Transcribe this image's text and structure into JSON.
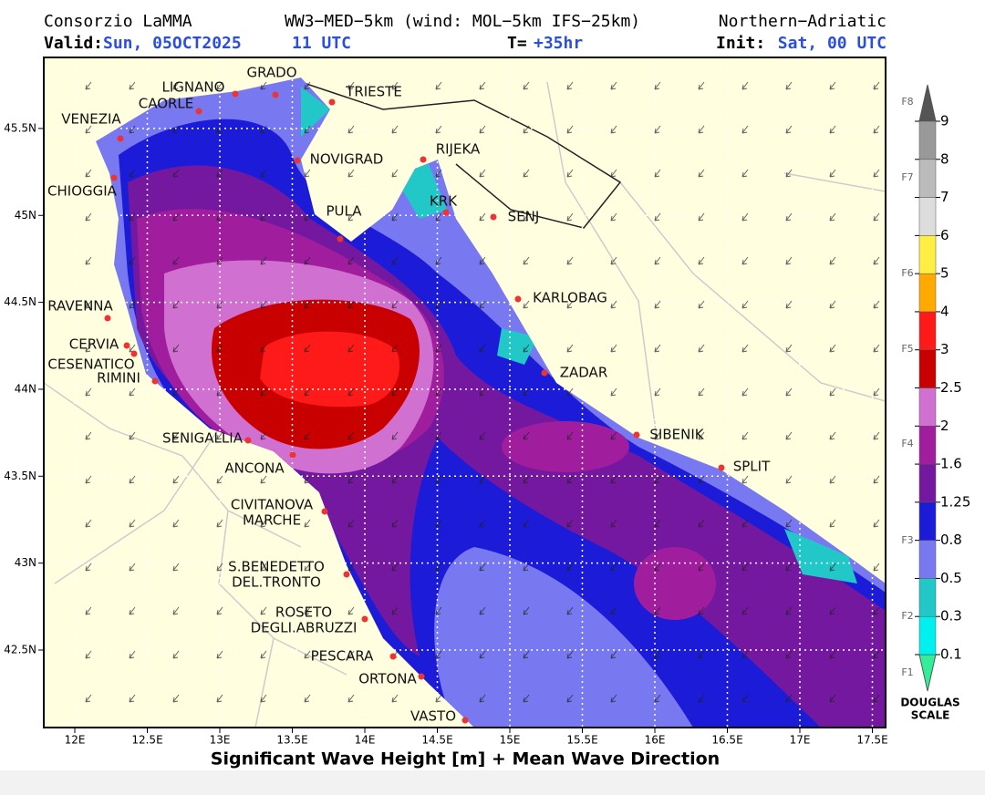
{
  "header": {
    "source": "Consorzio LaMMA",
    "model": "WW3−MED−5km (wind: MOL−5km IFS−25km)",
    "region": "Northern−Adriatic",
    "valid_label": "Valid:",
    "valid_date": "Sun, 05OCT2025",
    "valid_time": "11 UTC",
    "t_label": "T=",
    "t_value": "+35hr",
    "init_label": "Init:",
    "init_value": "Sat, 00 UTC"
  },
  "axes": {
    "x_ticks": [
      {
        "value": 12,
        "label": "12E"
      },
      {
        "value": 12.5,
        "label": "12.5E"
      },
      {
        "value": 13,
        "label": "13E"
      },
      {
        "value": 13.5,
        "label": "13.5E"
      },
      {
        "value": 14,
        "label": "14E"
      },
      {
        "value": 14.5,
        "label": "14.5E"
      },
      {
        "value": 15,
        "label": "15E"
      },
      {
        "value": 15.5,
        "label": "15.5E"
      },
      {
        "value": 16,
        "label": "16E"
      },
      {
        "value": 16.5,
        "label": "16.5E"
      },
      {
        "value": 17,
        "label": "17E"
      },
      {
        "value": 17.5,
        "label": "17.5E"
      }
    ],
    "y_ticks": [
      {
        "value": 45.5,
        "label": "45.5N"
      },
      {
        "value": 45,
        "label": "45N"
      },
      {
        "value": 44.5,
        "label": "44.5N"
      },
      {
        "value": 44,
        "label": "44N"
      },
      {
        "value": 43.5,
        "label": "43.5N"
      },
      {
        "value": 43,
        "label": "43N"
      },
      {
        "value": 42.5,
        "label": "42.5N"
      }
    ],
    "title": "Significant Wave Height [m] + Mean Wave Direction"
  },
  "cities": [
    {
      "lines": [
        "GRADO"
      ]
    },
    {
      "lines": [
        "LIGNANO"
      ]
    },
    {
      "lines": [
        "CAORLE"
      ]
    },
    {
      "lines": [
        "TRIESTE"
      ]
    },
    {
      "lines": [
        "VENEZIA"
      ]
    },
    {
      "lines": [
        "NOVIGRAD"
      ]
    },
    {
      "lines": [
        "RIJEKA"
      ]
    },
    {
      "lines": [
        "CHIOGGIA"
      ]
    },
    {
      "lines": [
        "KRK"
      ]
    },
    {
      "lines": [
        "SENJ"
      ]
    },
    {
      "lines": [
        "PULA"
      ]
    },
    {
      "lines": [
        "KARLOBAG"
      ]
    },
    {
      "lines": [
        "RAVENNA"
      ]
    },
    {
      "lines": [
        "CERVIA"
      ]
    },
    {
      "lines": [
        "CESENATICO"
      ]
    },
    {
      "lines": [
        "RIMINI"
      ]
    },
    {
      "lines": [
        "ZADAR"
      ]
    },
    {
      "lines": [
        "SIBENIK"
      ]
    },
    {
      "lines": [
        "SENIGALLIA"
      ]
    },
    {
      "lines": [
        "SPLIT"
      ]
    },
    {
      "lines": [
        "ANCONA"
      ]
    },
    {
      "lines": [
        "CIVITANOVA",
        "MARCHE"
      ]
    },
    {
      "lines": [
        "S.BENEDETTO",
        "DEL.TRONTO"
      ]
    },
    {
      "lines": [
        "ROSETO",
        "DEGLI.ABRUZZI"
      ]
    },
    {
      "lines": [
        "PESCARA"
      ]
    },
    {
      "lines": [
        "ORTONA"
      ]
    },
    {
      "lines": [
        "VASTO"
      ]
    }
  ],
  "colorbar": {
    "levels": [
      0.1,
      0.3,
      0.5,
      0.8,
      1.25,
      1.6,
      2,
      2.5,
      3,
      4,
      5,
      6,
      7,
      8,
      9
    ],
    "colors": [
      "#33ee99",
      "#00f0f0",
      "#22c8c8",
      "#7878f0",
      "#1c1cd8",
      "#7418a0",
      "#a01e9e",
      "#d070d0",
      "#c80000",
      "#ff1a1a",
      "#ffaa00",
      "#ffee44",
      "#dddddd",
      "#bbbbbb",
      "#999999",
      "#555555"
    ],
    "douglas": [
      "F1",
      "F2",
      "F3",
      "F4",
      "F5",
      "F6",
      "F7",
      "F8"
    ],
    "scale_label": [
      "DOUGLAS",
      "SCALE"
    ]
  }
}
